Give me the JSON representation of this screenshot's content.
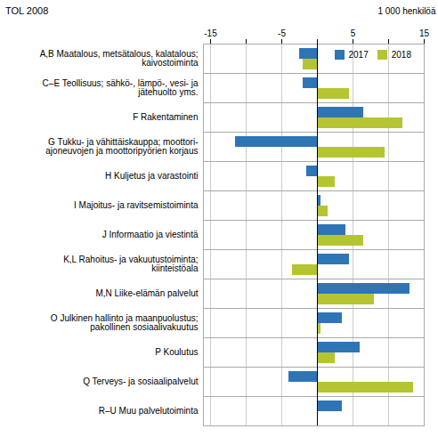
{
  "chart_data": {
    "type": "bar",
    "orientation": "horizontal",
    "xlabel": "1 000 henkilöä",
    "ylabel": "TOL 2008",
    "categories": [
      "A,B Maatalous, metsätalous, kalatalous;\nkaivostoiminta",
      "C–E Teollisuus; sähkö-, lämpö-, vesi- ja\njätehuolto yms.",
      "F Rakentaminen",
      "G Tukku- ja vähittäiskauppa; moottori-\najoneuvojen ja moottoripyörien korjaus",
      "H Kuljetus ja varastointi",
      "I Majoitus- ja ravitsemistoiminta",
      "J Informaatio ja viestintä",
      "K,L Rahoitus- ja vakuutustoiminta;\nkiinteistöala",
      "M,N Liike-elämän palvelut",
      "O Julkinen hallinto ja maanpuolustus;\npakollinen sosiaalivakuutus",
      "P Koulutus",
      "Q Terveys- ja sosiaalipalvelut",
      "R–U Muu palvelutoiminta"
    ],
    "series": [
      {
        "name": "2017",
        "color": "#2e75b6",
        "values": [
          -2.5,
          -2.0,
          6.5,
          -11.5,
          -1.5,
          0.5,
          4.0,
          4.5,
          13.0,
          3.5,
          6.0,
          -4.0,
          3.5
        ]
      },
      {
        "name": "2018",
        "color": "#b5c532",
        "values": [
          -2.0,
          4.5,
          12.0,
          9.5,
          2.5,
          1.5,
          6.5,
          -3.5,
          8.0,
          0.5,
          2.5,
          13.5,
          0.0
        ]
      }
    ],
    "xlim": [
      -16,
      15
    ],
    "xticks": [
      -15,
      {
        "value": -10,
        "label": ""
      },
      -5,
      {
        "value": 0,
        "label": ""
      },
      5,
      {
        "value": 10,
        "label": ""
      },
      15
    ],
    "grid": true,
    "legend": "upper right"
  }
}
